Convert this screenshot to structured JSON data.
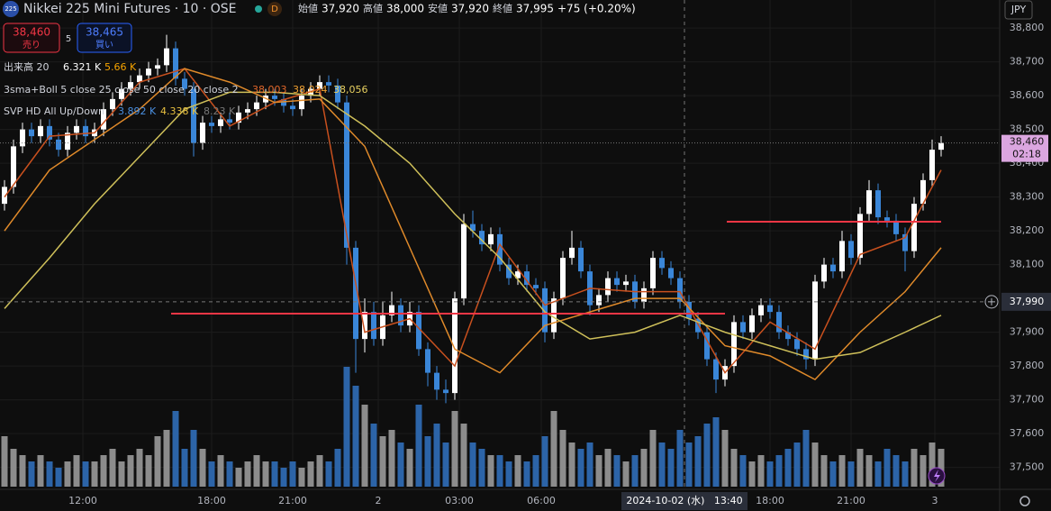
{
  "header": {
    "logo": "225",
    "symbol": "Nikkei 225 Mini Futures · 10 · OSE",
    "badge": "D",
    "ohlc": [
      {
        "label": "始値",
        "value": "37,920"
      },
      {
        "label": "高値",
        "value": "38,000"
      },
      {
        "label": "安値",
        "value": "37,920"
      },
      {
        "label": "終値",
        "value": "37,995"
      }
    ],
    "change": "+75 (+0.20%)",
    "currency": "JPY"
  },
  "trade": {
    "sell_price": "38,460",
    "sell_label": "売り",
    "spread": "5",
    "buy_price": "38,465",
    "buy_label": "買い"
  },
  "indicators": [
    {
      "name": "出来高 20",
      "values": [
        "6.321 K",
        "5.66 K"
      ]
    },
    {
      "name": "3sma+Boll 5 close 25 close 50 close 20 close 2",
      "values": [
        "38,003",
        "38,024",
        "38,056"
      ]
    },
    {
      "name": "SVP HD All Up/Down",
      "values": [
        "3.892 K",
        "4.338 K",
        "8.23 K"
      ]
    }
  ],
  "chart_data": {
    "type": "candlestick",
    "open": [
      38280,
      38330,
      38450,
      38500,
      38480,
      38510,
      38470,
      38440,
      38490,
      38510,
      38480,
      38500,
      38560,
      38590,
      38620,
      38640,
      38660,
      38680,
      38690,
      38740,
      38650,
      38620,
      38460,
      38520,
      38510,
      38530,
      38520,
      38550,
      38560,
      38580,
      38600,
      38590,
      38570,
      38560,
      38600,
      38620,
      38640,
      38630,
      38580,
      38150,
      37880,
      37960,
      37880,
      37950,
      37980,
      37920,
      37960,
      37850,
      37780,
      37730,
      37720,
      38000,
      38220,
      38200,
      38160,
      38190,
      38100,
      38060,
      38080,
      38040,
      38030,
      37900,
      38000,
      38120,
      38150,
      38080,
      37980,
      38010,
      38060,
      38040,
      38050,
      37990,
      38030,
      38120,
      38090,
      38060,
      37990,
      37940,
      37900,
      37820,
      37760,
      37800,
      37930,
      37900,
      37950,
      37980,
      37960,
      37900,
      37880,
      37850,
      37820,
      38050,
      38100,
      38080,
      38170,
      38120,
      38250,
      38320,
      38240,
      38230,
      38190,
      38140,
      38280,
      38350,
      38440
    ],
    "high": [
      38350,
      38470,
      38520,
      38520,
      38530,
      38530,
      38490,
      38510,
      38530,
      38530,
      38520,
      38580,
      38610,
      38640,
      38660,
      38680,
      38700,
      38710,
      38780,
      38760,
      38670,
      38640,
      38540,
      38540,
      38550,
      38550,
      38570,
      38580,
      38600,
      38620,
      38620,
      38610,
      38590,
      38620,
      38640,
      38660,
      38660,
      38650,
      38600,
      38170,
      38000,
      37990,
      37990,
      38020,
      38000,
      37990,
      37980,
      37870,
      37800,
      37760,
      38020,
      38250,
      38260,
      38220,
      38210,
      38210,
      38120,
      38100,
      38100,
      38060,
      38050,
      38020,
      38140,
      38200,
      38170,
      38100,
      38030,
      38080,
      38080,
      38070,
      38070,
      38050,
      38140,
      38140,
      38110,
      38080,
      38010,
      37960,
      37920,
      37840,
      37820,
      37950,
      37950,
      37970,
      38000,
      38000,
      37980,
      37920,
      37900,
      37870,
      38070,
      38120,
      38120,
      38200,
      38190,
      38270,
      38350,
      38340,
      38260,
      38250,
      38210,
      38300,
      38370,
      38470,
      38480
    ],
    "low": [
      38260,
      38310,
      38430,
      38460,
      38460,
      38450,
      38420,
      38420,
      38470,
      38460,
      38460,
      38480,
      38540,
      38570,
      38600,
      38620,
      38640,
      38660,
      38670,
      38630,
      38600,
      38420,
      38440,
      38490,
      38490,
      38500,
      38500,
      38530,
      38540,
      38560,
      38570,
      38550,
      38540,
      38540,
      38580,
      38600,
      38610,
      38560,
      38100,
      37780,
      37840,
      37860,
      37860,
      37930,
      37900,
      37900,
      37830,
      37740,
      37700,
      37690,
      37700,
      37980,
      38180,
      38140,
      38140,
      38080,
      38040,
      38040,
      38020,
      38010,
      37870,
      37880,
      37980,
      38100,
      38060,
      37950,
      37960,
      37990,
      38020,
      38020,
      37970,
      37970,
      38010,
      38070,
      38040,
      37970,
      37920,
      37880,
      37800,
      37720,
      37740,
      37780,
      37880,
      37880,
      37930,
      37940,
      37880,
      37860,
      37830,
      37790,
      37800,
      38030,
      38060,
      38060,
      38100,
      38100,
      38230,
      38220,
      38210,
      38170,
      38080,
      38120,
      38260,
      38330,
      38420
    ],
    "close": [
      38330,
      38450,
      38500,
      38480,
      38510,
      38470,
      38440,
      38490,
      38510,
      38480,
      38500,
      38560,
      38590,
      38620,
      38640,
      38660,
      38680,
      38690,
      38740,
      38650,
      38620,
      38460,
      38520,
      38510,
      38530,
      38520,
      38550,
      38560,
      38580,
      38600,
      38590,
      38570,
      38560,
      38600,
      38620,
      38640,
      38630,
      38580,
      38150,
      37880,
      37960,
      37880,
      37950,
      37980,
      37920,
      37960,
      37850,
      37780,
      37730,
      37720,
      38000,
      38220,
      38200,
      38160,
      38190,
      38100,
      38060,
      38080,
      38040,
      38030,
      37900,
      38000,
      38120,
      38150,
      38080,
      37980,
      38010,
      38060,
      38040,
      38050,
      37990,
      38030,
      38120,
      38090,
      38060,
      37990,
      37940,
      37900,
      37820,
      37760,
      37800,
      37930,
      37900,
      37950,
      37980,
      37960,
      37900,
      37880,
      37850,
      37820,
      38050,
      38100,
      38080,
      38170,
      38120,
      38250,
      38320,
      38240,
      38230,
      38190,
      38140,
      38280,
      38350,
      38440,
      38460
    ],
    "volume": [
      8,
      6,
      5,
      4,
      5,
      4,
      3,
      4,
      5,
      4,
      4,
      5,
      6,
      4,
      5,
      6,
      5,
      8,
      9,
      12,
      6,
      9,
      6,
      4,
      5,
      4,
      3,
      4,
      5,
      4,
      4,
      3,
      4,
      3,
      4,
      5,
      4,
      6,
      19,
      16,
      13,
      10,
      8,
      9,
      7,
      6,
      13,
      8,
      10,
      7,
      12,
      10,
      7,
      6,
      5,
      5,
      4,
      5,
      4,
      5,
      8,
      12,
      9,
      7,
      6,
      7,
      5,
      6,
      5,
      4,
      5,
      6,
      9,
      7,
      6,
      9,
      7,
      8,
      10,
      11,
      9,
      6,
      5,
      4,
      5,
      4,
      5,
      6,
      7,
      9,
      7,
      5,
      4,
      5,
      4,
      6,
      5,
      4,
      6,
      5,
      4,
      6,
      5,
      7,
      6
    ],
    "up_color": "#ffffff",
    "down_color": "#3a86d8",
    "volume_up_color": "#8c8c8c",
    "volume_down_color": "#2c64a8",
    "overlay_x": [
      0,
      5,
      10,
      15,
      20,
      25,
      30,
      35,
      40,
      45,
      50,
      55,
      60,
      65,
      70,
      75,
      80,
      85,
      90,
      95,
      100,
      104
    ],
    "overlays": [
      {
        "color": "#c8501e",
        "values": [
          38300,
          38480,
          38490,
          38640,
          38680,
          38510,
          38580,
          38620,
          37900,
          37940,
          37800,
          38160,
          37980,
          38030,
          38020,
          38020,
          37780,
          37930,
          37850,
          38130,
          38180,
          38380
        ]
      },
      {
        "color": "#e08a2a",
        "values": [
          38200,
          38380,
          38470,
          38560,
          38680,
          38640,
          38580,
          38590,
          38450,
          38150,
          37850,
          37780,
          37920,
          37960,
          38000,
          38000,
          37860,
          37830,
          37760,
          37900,
          38020,
          38150
        ]
      },
      {
        "color": "#cfc05a",
        "values": [
          37970,
          38120,
          38280,
          38420,
          38560,
          38610,
          38610,
          38600,
          38510,
          38400,
          38250,
          38120,
          37960,
          37880,
          37900,
          37950,
          37900,
          37860,
          37820,
          37840,
          37900,
          37950
        ]
      }
    ],
    "hlines": [
      {
        "value": 37955,
        "from": 18.5,
        "to": 80
      },
      {
        "value": 38227,
        "from": 80.2,
        "to": 104
      }
    ],
    "hline_color": "#f23645",
    "ylim": [
      37443,
      38883
    ],
    "yticks": [
      {
        "value": 37500,
        "label": "37,500"
      },
      {
        "value": 37600,
        "label": "37,600"
      },
      {
        "value": 37700,
        "label": "37,700"
      },
      {
        "value": 37800,
        "label": "37,800"
      },
      {
        "value": 37900,
        "label": "37,900"
      },
      {
        "value": 38000,
        "label": "38,000"
      },
      {
        "value": 38100,
        "label": "38,100"
      },
      {
        "value": 38200,
        "label": "38,200"
      },
      {
        "value": 38300,
        "label": "38,300"
      },
      {
        "value": 38400,
        "label": "38,400"
      },
      {
        "value": 38500,
        "label": "38,500"
      },
      {
        "value": 38600,
        "label": "38,600"
      },
      {
        "value": 38700,
        "label": "38,700"
      },
      {
        "value": 38800,
        "label": "38,800"
      }
    ],
    "xticks": [
      {
        "value": 8.7,
        "label": "12:00"
      },
      {
        "value": 23,
        "label": "18:00"
      },
      {
        "value": 32,
        "label": "21:00"
      },
      {
        "value": 41.5,
        "label": "2"
      },
      {
        "value": 50.5,
        "label": "03:00"
      },
      {
        "value": 59.6,
        "label": "06:00"
      },
      {
        "value": 85,
        "label": "18:00"
      },
      {
        "value": 94,
        "label": "21:00"
      },
      {
        "value": 103.3,
        "label": "3"
      }
    ],
    "grid": true,
    "last_price": {
      "value": 38460,
      "label": "38,460"
    },
    "countdown": "02:18",
    "crosshair": {
      "x": 75.5,
      "x_label": "2024-10-02 (水)   13:40",
      "y": {
        "value": 37990,
        "label": "37,990"
      }
    }
  }
}
